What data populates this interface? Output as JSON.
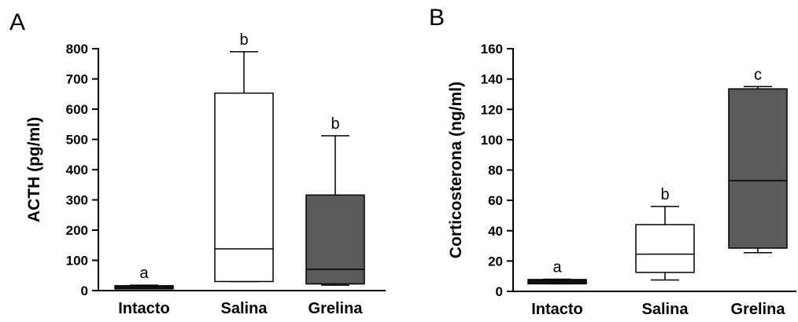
{
  "chart_data": [
    {
      "panel_label": "A",
      "type": "boxplot",
      "ylabel": "ACTH (pg/ml)",
      "ylim": [
        0,
        800
      ],
      "yticks": [
        0,
        100,
        200,
        300,
        400,
        500,
        600,
        700,
        800
      ],
      "categories": [
        "Intacto",
        "Salina",
        "Grelina"
      ],
      "boxes": [
        {
          "category": "Intacto",
          "min": 8,
          "q1": 8,
          "median": 12,
          "q3": 16,
          "max": 18,
          "fill": "#111111",
          "letter": "a"
        },
        {
          "category": "Salina",
          "min": 30,
          "q1": 30,
          "median": 138,
          "q3": 653,
          "max": 790,
          "fill": "#ffffff",
          "letter": "b"
        },
        {
          "category": "Grelina",
          "min": 18,
          "q1": 22,
          "median": 70,
          "q3": 316,
          "max": 512,
          "fill": "#5a5a5a",
          "letter": "b"
        }
      ]
    },
    {
      "panel_label": "B",
      "type": "boxplot",
      "ylabel": "Corticosterona (ng/ml)",
      "ylim": [
        0,
        160
      ],
      "yticks": [
        0,
        20,
        40,
        60,
        80,
        100,
        120,
        140,
        160
      ],
      "categories": [
        "Intacto",
        "Salina",
        "Grelina"
      ],
      "boxes": [
        {
          "category": "Intacto",
          "min": 5,
          "q1": 5,
          "median": 6.5,
          "q3": 7.8,
          "max": 8,
          "fill": "#111111",
          "letter": "a"
        },
        {
          "category": "Salina",
          "min": 7.5,
          "q1": 12.5,
          "median": 24.5,
          "q3": 44,
          "max": 56,
          "fill": "#ffffff",
          "letter": "b"
        },
        {
          "category": "Grelina",
          "min": 25.5,
          "q1": 28.5,
          "median": 73,
          "q3": 133.5,
          "max": 135,
          "fill": "#5a5a5a",
          "letter": "c"
        }
      ]
    }
  ]
}
